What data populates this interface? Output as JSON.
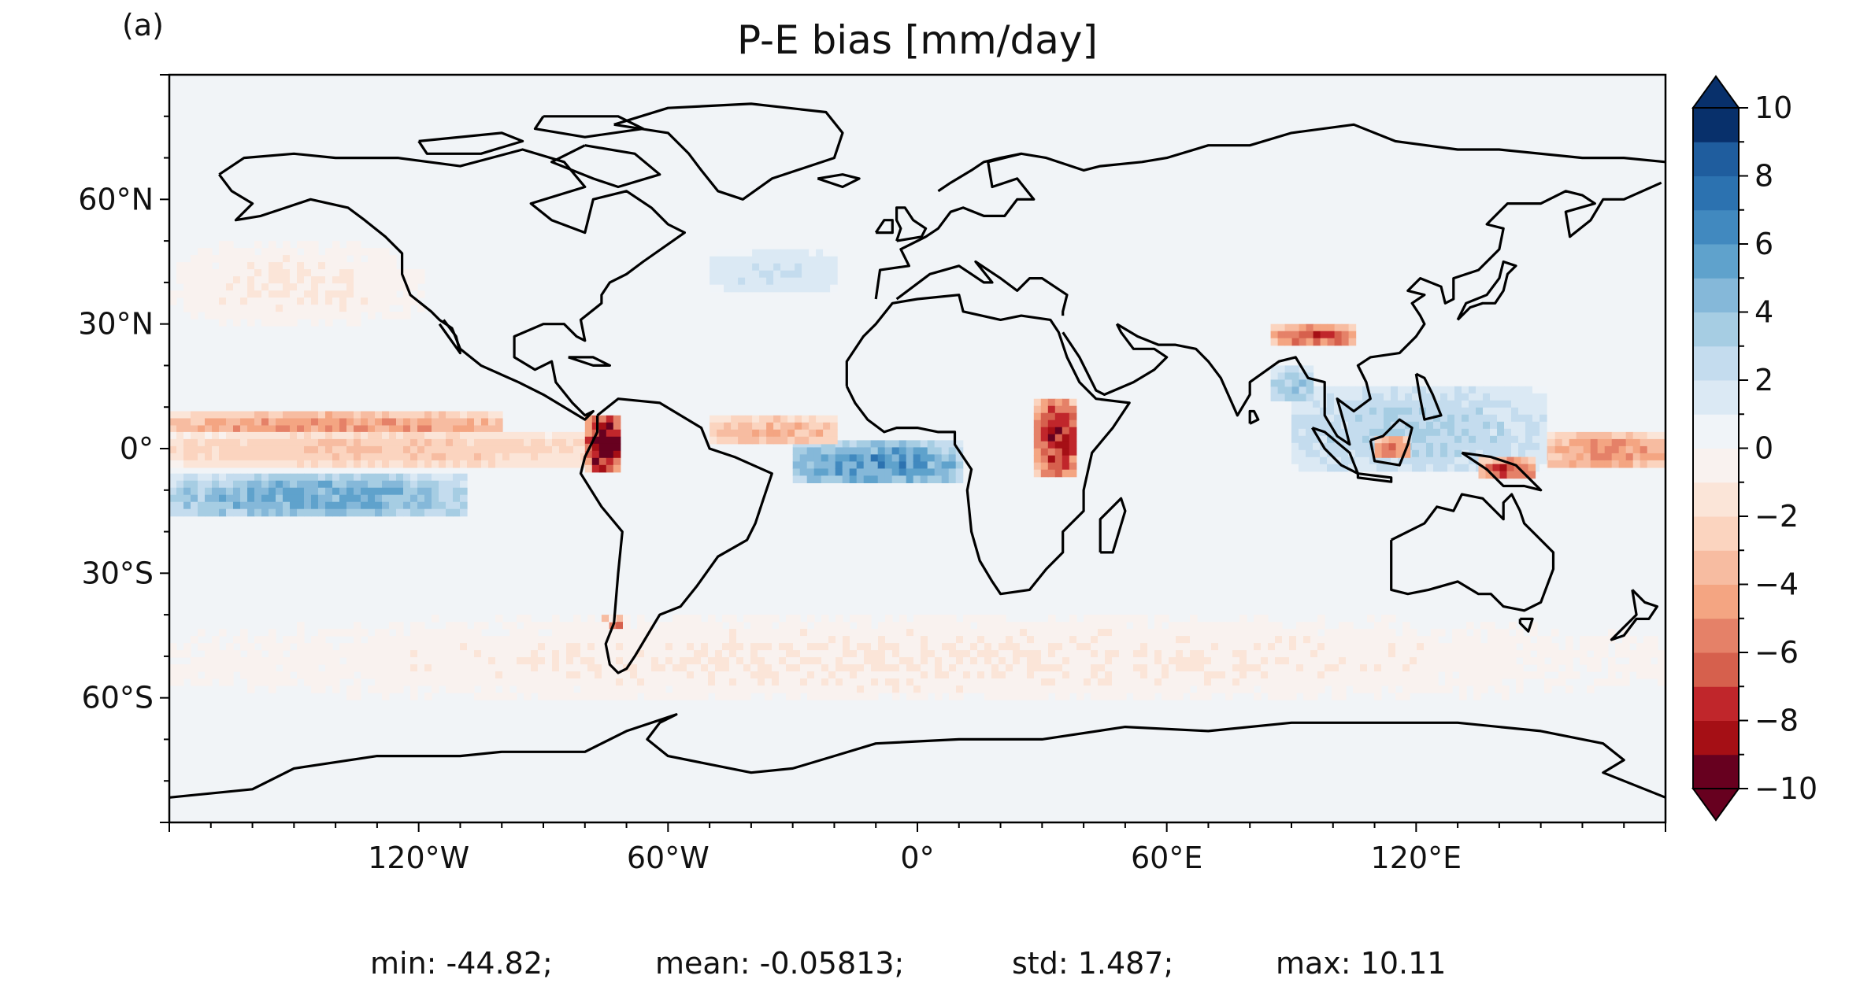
{
  "panel_label": "(a)",
  "chart_data": {
    "type": "heatmap",
    "title": "P-E bias [mm/day]",
    "projection": "equirectangular world map with coastlines",
    "x_range": [
      -180,
      180
    ],
    "y_range": [
      -90,
      90
    ],
    "x_ticks": [
      {
        "value": -120,
        "label": "120°W"
      },
      {
        "value": -60,
        "label": "60°W"
      },
      {
        "value": 0,
        "label": "0°"
      },
      {
        "value": 60,
        "label": "60°E"
      },
      {
        "value": 120,
        "label": "120°E"
      }
    ],
    "y_ticks": [
      {
        "value": 60,
        "label": "60°N"
      },
      {
        "value": 30,
        "label": "30°N"
      },
      {
        "value": 0,
        "label": "0°"
      },
      {
        "value": -30,
        "label": "30°S"
      },
      {
        "value": -60,
        "label": "60°S"
      }
    ],
    "colorbar": {
      "range": [
        -10,
        10
      ],
      "step": 1,
      "extend": "both",
      "colormap": "RdBu",
      "tick_values": [
        10,
        8,
        6,
        4,
        2,
        0,
        -2,
        -4,
        -6,
        -8,
        -10
      ],
      "tick_labels": [
        "10",
        "8",
        "6",
        "4",
        "2",
        "0",
        "−2",
        "−4",
        "−6",
        "−8",
        "−10"
      ],
      "colors": [
        "#67001f",
        "#a50f15",
        "#c0262b",
        "#d6604d",
        "#e58168",
        "#f4a582",
        "#f7bca1",
        "#fbd4bf",
        "#fbe5d8",
        "#f9f2ef",
        "#f0f4f8",
        "#dbe9f4",
        "#c4dcee",
        "#a6cde3",
        "#85b8d9",
        "#5fa2cc",
        "#4189bf",
        "#2c72b0",
        "#1f5d9e",
        "#08306b"
      ]
    },
    "features": [
      {
        "name": "Pacific ITCZ negative band",
        "lon": [
          -180,
          -100
        ],
        "lat": [
          3,
          9
        ],
        "value": -5
      },
      {
        "name": "South Pacific positive band",
        "lon": [
          -180,
          -110
        ],
        "lat": [
          -16,
          -6
        ],
        "value": 5
      },
      {
        "name": "Equatorial Pacific negative",
        "lon": [
          -180,
          -80
        ],
        "lat": [
          -3,
          4
        ],
        "value": -3
      },
      {
        "name": "Equatorial Atlantic positive",
        "lon": [
          -30,
          10
        ],
        "lat": [
          -8,
          2
        ],
        "value": 6
      },
      {
        "name": "Atlantic ITCZ negative",
        "lon": [
          -50,
          -20
        ],
        "lat": [
          2,
          8
        ],
        "value": -4
      },
      {
        "name": "West Pacific negative",
        "lon": [
          150,
          180
        ],
        "lat": [
          -4,
          4
        ],
        "value": -5
      },
      {
        "name": "Maritime Continent positive",
        "lon": [
          90,
          150
        ],
        "lat": [
          -5,
          15
        ],
        "value": 3
      },
      {
        "name": "Borneo negative",
        "lon": [
          110,
          118
        ],
        "lat": [
          -2,
          3
        ],
        "value": -6
      },
      {
        "name": "New Guinea negative",
        "lon": [
          135,
          148
        ],
        "lat": [
          -7,
          -2
        ],
        "value": -7
      },
      {
        "name": "Andes extremes",
        "lon": [
          -80,
          -72
        ],
        "lat": [
          -5,
          8
        ],
        "value": -10
      },
      {
        "name": "Southern Andes extremes",
        "lon": [
          -76,
          -72
        ],
        "lat": [
          -50,
          -40
        ],
        "value": -9
      },
      {
        "name": "Tibetan plateau edge",
        "lon": [
          85,
          105
        ],
        "lat": [
          26,
          30
        ],
        "value": -7
      },
      {
        "name": "East Africa rift",
        "lon": [
          28,
          38
        ],
        "lat": [
          -6,
          12
        ],
        "value": -8
      },
      {
        "name": "Bay of Bengal positive",
        "lon": [
          85,
          95
        ],
        "lat": [
          12,
          20
        ],
        "value": 4
      },
      {
        "name": "Southern ocean weak negative",
        "lon": [
          -180,
          180
        ],
        "lat": [
          -60,
          -40
        ],
        "value": -1
      },
      {
        "name": "North Pacific weak negative",
        "lon": [
          -180,
          -120
        ],
        "lat": [
          30,
          50
        ],
        "value": -1
      },
      {
        "name": "North Atlantic positive",
        "lon": [
          -50,
          -20
        ],
        "lat": [
          38,
          48
        ],
        "value": 2
      }
    ],
    "stats": {
      "min": "min: -44.82;",
      "mean": "mean: -0.05813;",
      "std": "std: 1.487;",
      "max": "max: 10.11"
    }
  }
}
